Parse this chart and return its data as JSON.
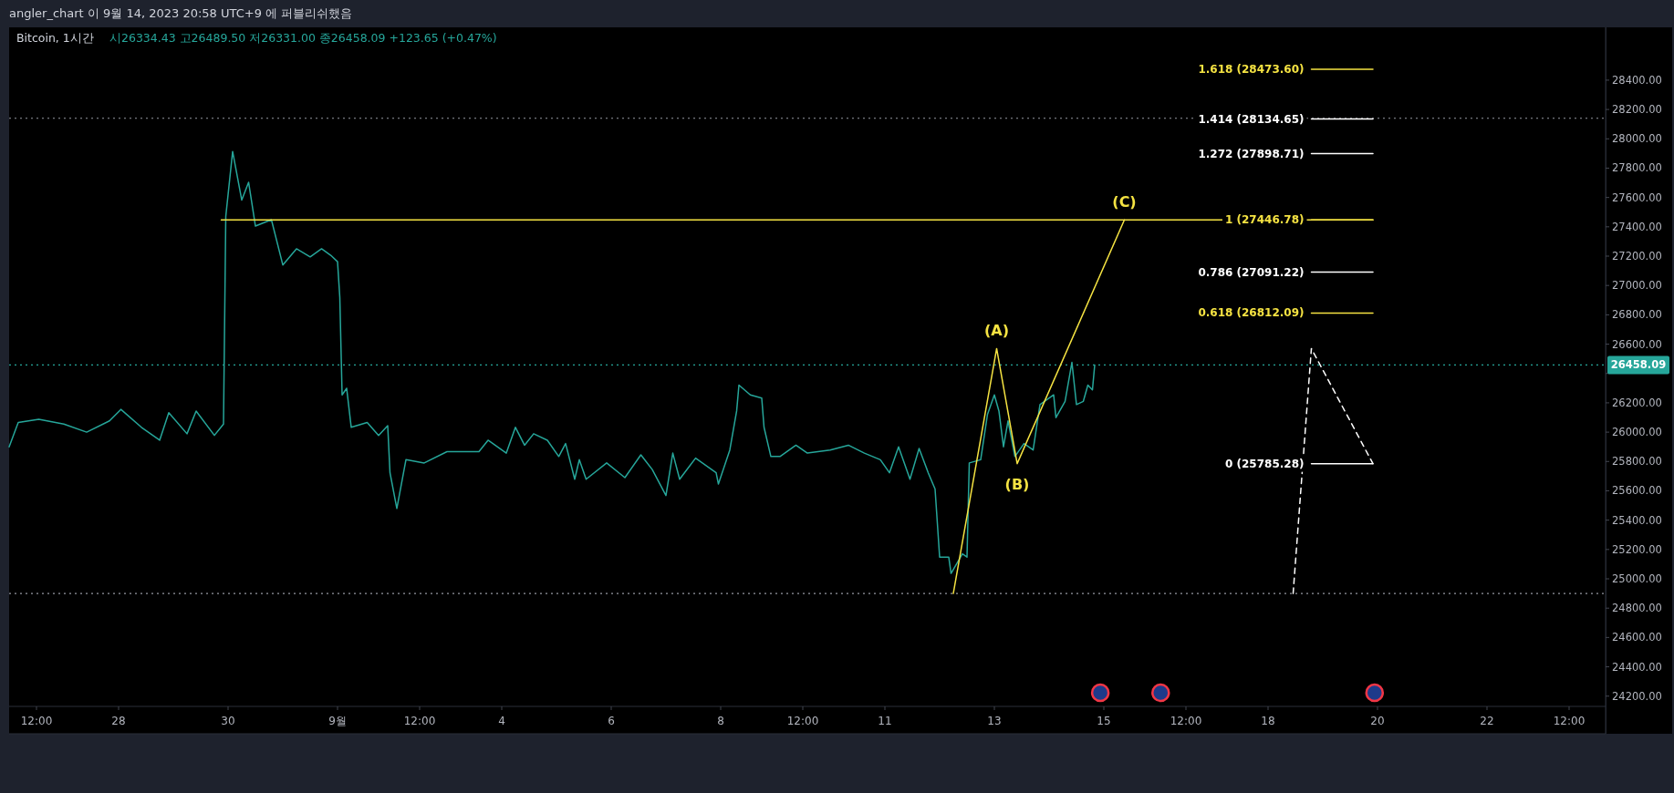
{
  "chart_data": {
    "type": "line",
    "title": "Bitcoin, 1시간",
    "subtitle": "시26334.43  고26489.50  저26331.00  종26458.09  +123.65 (+0.47%)",
    "annotations": [
      "angler_chart 이 9월 14, 2023 20:58 UTC+9 에 퍼블리쉬했음",
      {
        "text": "(A)",
        "x": "2023-09-13T01:00",
        "y": 26570
      },
      {
        "text": "(B)",
        "x": "2023-09-13T10:00",
        "y": 25785.28
      },
      {
        "text": "(C)",
        "x": "2023-09-15T09:00",
        "y": 27446.78
      }
    ],
    "xlim": [
      "2023-08-26T00:00",
      "2023-09-24T04:00"
    ],
    "xticks": [
      {
        "value": "2023-08-26T12:00",
        "label": "12:00"
      },
      {
        "value": "2023-08-28T00:00",
        "label": "28"
      },
      {
        "value": "2023-08-30T00:00",
        "label": "30"
      },
      {
        "value": "2023-09-01T00:00",
        "label": "9월"
      },
      {
        "value": "2023-09-02T12:00",
        "label": "12:00"
      },
      {
        "value": "2023-09-04T00:00",
        "label": "4"
      },
      {
        "value": "2023-09-06T00:00",
        "label": "6"
      },
      {
        "value": "2023-09-08T00:00",
        "label": "8"
      },
      {
        "value": "2023-09-09T12:00",
        "label": "12:00"
      },
      {
        "value": "2023-09-11T00:00",
        "label": "11"
      },
      {
        "value": "2023-09-13T00:00",
        "label": "13"
      },
      {
        "value": "2023-09-15T00:00",
        "label": "15"
      },
      {
        "value": "2023-09-16T12:00",
        "label": "12:00"
      },
      {
        "value": "2023-09-18T00:00",
        "label": "18"
      },
      {
        "value": "2023-09-20T00:00",
        "label": "20"
      },
      {
        "value": "2023-09-22T00:00",
        "label": "22"
      },
      {
        "value": "2023-09-23T12:00",
        "label": "12:00"
      }
    ],
    "ylim": [
      24130,
      28760
    ],
    "yticks": [
      {
        "value": 24200,
        "label": "24200.00"
      },
      {
        "value": 24400,
        "label": "24400.00"
      },
      {
        "value": 24600,
        "label": "24600.00"
      },
      {
        "value": 24800,
        "label": "24800.00"
      },
      {
        "value": 25000,
        "label": "25000.00"
      },
      {
        "value": 25200,
        "label": "25200.00"
      },
      {
        "value": 25400,
        "label": "25400.00"
      },
      {
        "value": 25600,
        "label": "25600.00"
      },
      {
        "value": 25800,
        "label": "25800.00"
      },
      {
        "value": 26000,
        "label": "26000.00"
      },
      {
        "value": 26200,
        "label": "26200.00"
      },
      {
        "value": 26400,
        "label": null
      },
      {
        "value": 26600,
        "label": "26600.00"
      },
      {
        "value": 26800,
        "label": "26800.00"
      },
      {
        "value": 27000,
        "label": "27000.00"
      },
      {
        "value": 27200,
        "label": "27200.00"
      },
      {
        "value": 27400,
        "label": "27400.00"
      },
      {
        "value": 27600,
        "label": "27600.00"
      },
      {
        "value": 27800,
        "label": "27800.00"
      },
      {
        "value": 28000,
        "label": "28000.00"
      },
      {
        "value": 28200,
        "label": "28200.00"
      },
      {
        "value": 28400,
        "label": "28400.00"
      }
    ],
    "ref_lines": [
      {
        "axis": "y",
        "value": 26458.09,
        "label": "26458.09",
        "color": "#26a69a",
        "line_style": "dotted"
      },
      {
        "axis": "y",
        "value": 28140,
        "color": "#9598a1",
        "line_style": "dotted"
      },
      {
        "axis": "y",
        "value": 24900,
        "color": "#9598a1",
        "line_style": "dotted"
      }
    ],
    "series": [
      {
        "color": "#26a69a",
        "x": [
          "2023-08-26T00:00",
          "2023-08-26T04:00",
          "2023-08-26T13:00",
          "2023-08-27T00:00",
          "2023-08-27T10:00",
          "2023-08-27T20:00",
          "2023-08-28T01:00",
          "2023-08-28T10:00",
          "2023-08-28T18:00",
          "2023-08-28T22:00",
          "2023-08-29T06:00",
          "2023-08-29T10:00",
          "2023-08-29T18:00",
          "2023-08-29T22:00",
          "2023-08-29T23:00",
          "2023-08-30T02:00",
          "2023-08-30T06:00",
          "2023-08-30T09:00",
          "2023-08-30T12:00",
          "2023-08-30T19:00",
          "2023-08-31T00:00",
          "2023-08-31T06:00",
          "2023-08-31T12:00",
          "2023-08-31T17:00",
          "2023-08-31T21:00",
          "2023-09-01T00:00",
          "2023-09-01T01:00",
          "2023-09-01T02:00",
          "2023-09-01T04:00",
          "2023-09-01T06:00",
          "2023-09-01T13:00",
          "2023-09-01T18:00",
          "2023-09-01T22:00",
          "2023-09-01T23:00",
          "2023-09-02T02:00",
          "2023-09-02T06:00",
          "2023-09-02T14:00",
          "2023-09-03T00:00",
          "2023-09-03T14:00",
          "2023-09-03T18:00",
          "2023-09-04T02:00",
          "2023-09-04T06:00",
          "2023-09-04T10:00",
          "2023-09-04T14:00",
          "2023-09-04T20:00",
          "2023-09-05T01:00",
          "2023-09-05T04:00",
          "2023-09-05T08:00",
          "2023-09-05T10:00",
          "2023-09-05T13:00",
          "2023-09-05T22:00",
          "2023-09-06T06:00",
          "2023-09-06T13:00",
          "2023-09-06T18:00",
          "2023-09-07T00:00",
          "2023-09-07T03:00",
          "2023-09-07T06:00",
          "2023-09-07T13:00",
          "2023-09-07T22:00",
          "2023-09-07T23:00",
          "2023-09-08T04:00",
          "2023-09-08T07:00",
          "2023-09-08T08:00",
          "2023-09-08T13:00",
          "2023-09-08T18:00",
          "2023-09-08T19:00",
          "2023-09-08T22:00",
          "2023-09-09T02:00",
          "2023-09-09T09:00",
          "2023-09-09T14:00",
          "2023-09-10T00:00",
          "2023-09-10T08:00",
          "2023-09-10T15:00",
          "2023-09-10T22:00",
          "2023-09-11T02:00",
          "2023-09-11T06:00",
          "2023-09-11T11:00",
          "2023-09-11T15:00",
          "2023-09-11T19:00",
          "2023-09-11T22:00",
          "2023-09-12T00:00",
          "2023-09-12T04:00",
          "2023-09-12T05:00",
          "2023-09-12T10:00",
          "2023-09-12T12:00",
          "2023-09-12T13:00",
          "2023-09-12T18:00",
          "2023-09-12T21:00",
          "2023-09-13T00:00",
          "2023-09-13T02:00",
          "2023-09-13T04:00",
          "2023-09-13T06:00",
          "2023-09-13T09:00",
          "2023-09-13T13:00",
          "2023-09-13T17:00",
          "2023-09-13T20:00",
          "2023-09-14T02:00",
          "2023-09-14T03:00",
          "2023-09-14T07:00",
          "2023-09-14T10:00",
          "2023-09-14T12:00",
          "2023-09-14T15:00",
          "2023-09-14T17:00",
          "2023-09-14T19:00",
          "2023-09-14T20:00"
        ],
        "values": [
          25900,
          26066,
          26088,
          26055,
          26000,
          26077,
          26155,
          26033,
          25945,
          26133,
          25989,
          26144,
          25978,
          26055,
          27471,
          27914,
          27582,
          27704,
          27405,
          27449,
          27140,
          27250,
          27195,
          27250,
          27206,
          27162,
          26918,
          26254,
          26299,
          26033,
          26066,
          25978,
          26044,
          25723,
          25480,
          25812,
          25790,
          25867,
          25867,
          25945,
          25857,
          26033,
          25911,
          25989,
          25945,
          25834,
          25922,
          25679,
          25812,
          25679,
          25790,
          25690,
          25845,
          25745,
          25568,
          25857,
          25679,
          25823,
          25723,
          25646,
          25878,
          26144,
          26321,
          26254,
          26232,
          26033,
          25834,
          25834,
          25911,
          25857,
          25878,
          25911,
          25857,
          25812,
          25723,
          25900,
          25679,
          25889,
          25723,
          25612,
          25148,
          25148,
          25037,
          25170,
          25148,
          25790,
          25812,
          26122,
          26254,
          26144,
          25900,
          26077,
          25834,
          25922,
          25878,
          26188,
          26254,
          26099,
          26210,
          26476,
          26188,
          26210,
          26321,
          26288,
          26458.09
        ]
      },
      {
        "color": "#f5e342",
        "x": [
          "2023-08-29T21:00",
          "2023-09-19T22:00"
        ],
        "values": [
          27446.78,
          27446.78
        ]
      },
      {
        "color": "#f5e342",
        "x": [
          "2023-09-12T06:00",
          "2023-09-13T01:00",
          "2023-09-13T10:00",
          "2023-09-15T09:00"
        ],
        "values": [
          24900,
          26570,
          25785.28,
          27446.78
        ]
      },
      {
        "color": "#ffffff",
        "line_style": "dashed",
        "x": [
          "2023-09-18T11:00",
          "2023-09-18T19:00",
          "2023-09-19T22:00"
        ],
        "values": [
          24900,
          26570,
          25785.28
        ]
      },
      {
        "name": "1.618 (28473.60)",
        "color": "#f5e342",
        "x": [
          "2023-09-18T19:00",
          "2023-09-19T22:00"
        ],
        "values": [
          28473.6,
          28473.6
        ]
      },
      {
        "name": "1.414 (28134.65)",
        "color": "#ffffff",
        "x": [
          "2023-09-18T19:00",
          "2023-09-19T22:00"
        ],
        "values": [
          28134.65,
          28134.65
        ]
      },
      {
        "name": "1.272 (27898.71)",
        "color": "#ffffff",
        "x": [
          "2023-09-18T19:00",
          "2023-09-19T22:00"
        ],
        "values": [
          27898.71,
          27898.71
        ]
      },
      {
        "name": "1 (27446.78)",
        "color": "#f5e342",
        "x": [
          "2023-09-18T19:00",
          "2023-09-19T22:00"
        ],
        "values": [
          27446.78,
          27446.78
        ]
      },
      {
        "name": "0.786 (27091.22)",
        "color": "#ffffff",
        "x": [
          "2023-09-18T19:00",
          "2023-09-19T22:00"
        ],
        "values": [
          27091.22,
          27091.22
        ]
      },
      {
        "name": "0.618 (26812.09)",
        "color": "#f5e342",
        "x": [
          "2023-09-18T19:00",
          "2023-09-19T22:00"
        ],
        "values": [
          26812.09,
          26812.09
        ]
      },
      {
        "name": "0 (25785.28)",
        "color": "#ffffff",
        "x": [
          "2023-09-18T19:00",
          "2023-09-19T22:00"
        ],
        "values": [
          25785.28,
          25785.28
        ]
      }
    ]
  }
}
